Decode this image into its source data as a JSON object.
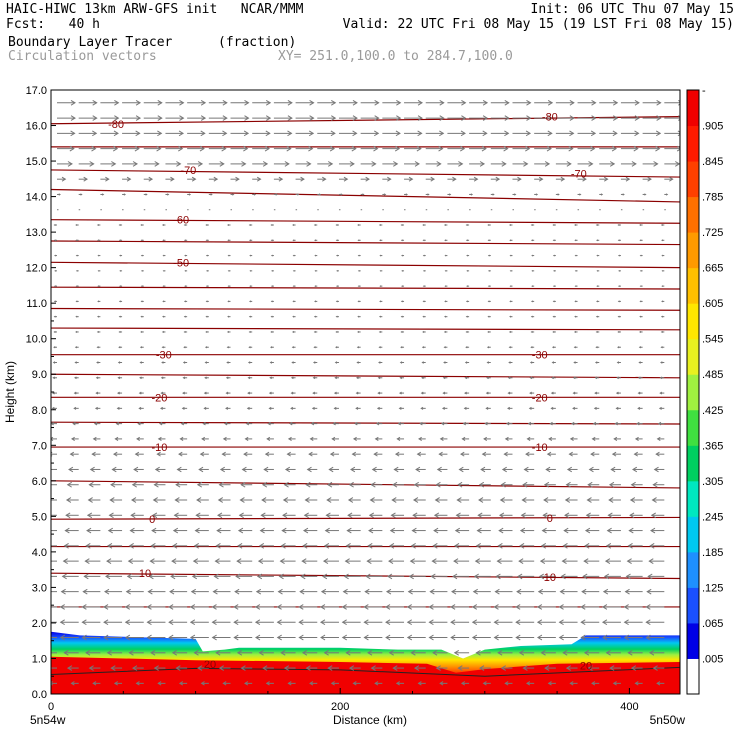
{
  "header": {
    "model_line": "HAIC-HIWC 13km ARW-GFS init   NCAR/MMM",
    "init_line": "Init: 06 UTC Thu 07 May 15",
    "fcst_line": "Fcst:   40 h",
    "valid_line": "Valid: 22 UTC Fri 08 May 15 (19 LST Fri 08 May 15)",
    "field_name": "Boundary Layer Tracer",
    "field_units": "(fraction)",
    "vector_label": "Circulation vectors",
    "xsec_label": "XY= 251.0,100.0 to 284.7,100.0"
  },
  "colors": {
    "contour": "#8b0000",
    "vectors": "#777777",
    "frame": "#000000"
  },
  "chart_data": {
    "type": "heatmap",
    "xlabel": "Distance (km)",
    "ylabel": "Height (km)",
    "xlim": [
      0,
      435
    ],
    "ylim": [
      0,
      17
    ],
    "x_ticks": [
      0,
      200,
      400
    ],
    "y_ticks": [
      "0.0",
      "1.0",
      "2.0",
      "3.0",
      "4.0",
      "5.0",
      "6.0",
      "7.0",
      "8.0",
      "9.0",
      "10.0",
      "11.0",
      "12.0",
      "13.0",
      "14.0",
      "15.0",
      "16.0",
      "17.0"
    ],
    "x_endpoint_labels": [
      "5n54w",
      "5n50w"
    ],
    "colorbar_labels": [
      ".005",
      ".065",
      ".125",
      ".185",
      ".245",
      ".305",
      ".365",
      ".425",
      ".485",
      ".545",
      ".605",
      ".665",
      ".725",
      ".785",
      ".845",
      ".905",
      "-"
    ],
    "colorbar_colors": [
      "#ffffff",
      "#0000e6",
      "#1a50ff",
      "#1e90ff",
      "#00c8f0",
      "#00e8c0",
      "#00d060",
      "#40e040",
      "#a0f040",
      "#e8f020",
      "#ffe600",
      "#ffc000",
      "#ff9a00",
      "#ff7000",
      "#ff4000",
      "#ff1a00",
      "#f00000"
    ],
    "tracer_top_km": [
      [
        0,
        1.75
      ],
      [
        20,
        1.65
      ],
      [
        100,
        1.55
      ],
      [
        105,
        1.2
      ],
      [
        120,
        1.25
      ],
      [
        130,
        1.3
      ],
      [
        150,
        1.3
      ],
      [
        200,
        1.3
      ],
      [
        240,
        1.25
      ],
      [
        270,
        1.25
      ],
      [
        285,
        1.0
      ],
      [
        300,
        1.25
      ],
      [
        325,
        1.35
      ],
      [
        360,
        1.4
      ],
      [
        370,
        1.65
      ],
      [
        400,
        1.65
      ],
      [
        435,
        1.65
      ]
    ],
    "core_top_km": [
      [
        0,
        1.05
      ],
      [
        100,
        0.95
      ],
      [
        200,
        0.9
      ],
      [
        260,
        0.85
      ],
      [
        280,
        0.6
      ],
      [
        300,
        0.7
      ],
      [
        350,
        0.85
      ],
      [
        435,
        0.9
      ]
    ],
    "isotherm_labels": [
      {
        "value": "-80",
        "x": 45,
        "z": 16.05
      },
      {
        "value": "-80",
        "x": 345,
        "z": 16.25
      },
      {
        "value": "-70",
        "x": 95,
        "z": 14.75
      },
      {
        "value": "-70",
        "x": 365,
        "z": 14.65
      },
      {
        "value": "-60",
        "x": 90,
        "z": 13.35
      },
      {
        "value": "-50",
        "x": 90,
        "z": 12.15
      },
      {
        "value": "-30",
        "x": 78,
        "z": 9.55
      },
      {
        "value": "-30",
        "x": 338,
        "z": 9.55
      },
      {
        "value": "-20",
        "x": 75,
        "z": 8.35
      },
      {
        "value": "-20",
        "x": 338,
        "z": 8.35
      },
      {
        "value": "-10",
        "x": 75,
        "z": 6.95
      },
      {
        "value": "-10",
        "x": 338,
        "z": 6.95
      },
      {
        "value": "0",
        "x": 70,
        "z": 4.92
      },
      {
        "value": "0",
        "x": 345,
        "z": 4.95
      },
      {
        "value": "10",
        "x": 65,
        "z": 3.4
      },
      {
        "value": "10",
        "x": 345,
        "z": 3.3
      },
      {
        "value": "20",
        "x": 110,
        "z": 0.85
      },
      {
        "value": "20",
        "x": 370,
        "z": 0.8
      }
    ],
    "isotherm_heights_km": [
      [
        16.05,
        16.25
      ],
      [
        15.4,
        15.4
      ],
      [
        14.75,
        14.55
      ],
      [
        14.2,
        13.85
      ],
      [
        13.35,
        13.25
      ],
      [
        12.75,
        12.65
      ],
      [
        12.15,
        12.0
      ],
      [
        11.45,
        11.4
      ],
      [
        10.85,
        10.8
      ],
      [
        10.3,
        10.25
      ],
      [
        9.55,
        9.55
      ],
      [
        9.0,
        8.9
      ],
      [
        8.35,
        8.35
      ],
      [
        7.65,
        7.6
      ],
      [
        6.95,
        6.95
      ],
      [
        6.0,
        5.8
      ],
      [
        4.92,
        4.97
      ],
      [
        4.15,
        4.15
      ],
      [
        3.4,
        3.25
      ],
      [
        2.45,
        2.45
      ]
    ],
    "wind_u_by_height": [
      [
        0.3,
        -0.4
      ],
      [
        1.6,
        -1.0
      ],
      [
        2.5,
        -1.0
      ],
      [
        4.0,
        -0.8
      ],
      [
        5.0,
        -0.7
      ],
      [
        6.0,
        -0.6
      ],
      [
        7.0,
        -0.4
      ],
      [
        8.0,
        -0.25
      ],
      [
        10.0,
        -0.15
      ],
      [
        12.0,
        -0.1
      ],
      [
        13.5,
        -0.15
      ],
      [
        14.3,
        0.3
      ],
      [
        15.0,
        0.9
      ],
      [
        16.0,
        1.0
      ],
      [
        16.8,
        1.0
      ]
    ]
  }
}
